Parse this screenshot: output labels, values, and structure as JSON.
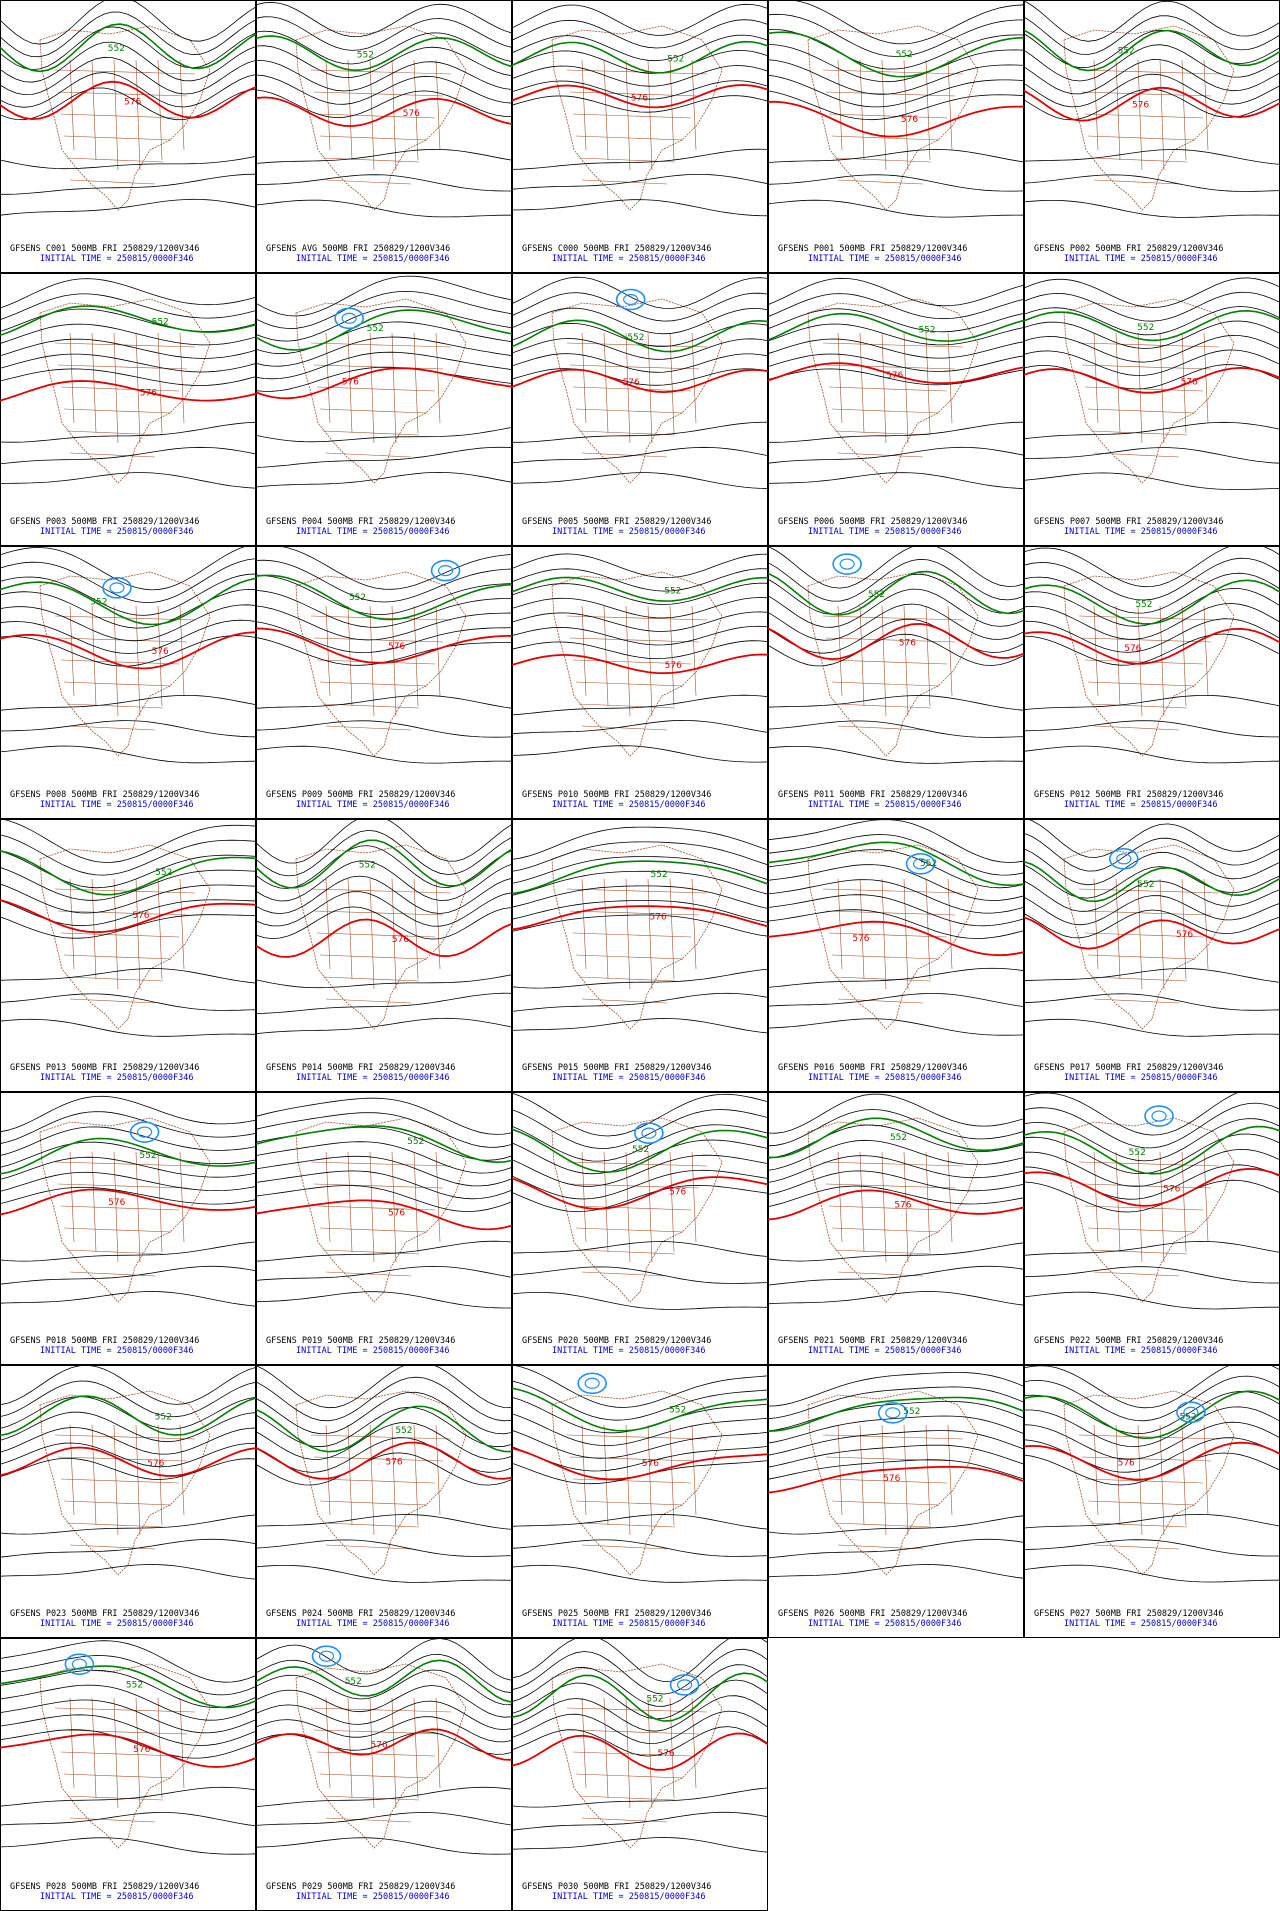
{
  "panels": [
    {
      "line1": "GFSENS C001 500MB FRI 250829/1200V346",
      "line2": "INITIAL TIME = 250815/0000F346",
      "contour_labels": [
        "576",
        "552"
      ]
    },
    {
      "line1": "GFSENS AVG 500MB FRI 250829/1200V346",
      "line2": "INITIAL TIME = 250815/0000F346",
      "contour_labels": [
        "576",
        "552"
      ]
    },
    {
      "line1": "GFSENS C000 500MB FRI 250829/1200V346",
      "line2": "INITIAL TIME = 250815/0000F346",
      "contour_labels": [
        "576",
        "552"
      ]
    },
    {
      "line1": "GFSENS P001 500MB FRI 250829/1200V346",
      "line2": "INITIAL TIME = 250815/0000F346",
      "contour_labels": [
        "576",
        "552"
      ]
    },
    {
      "line1": "GFSENS P002 500MB FRI 250829/1200V346",
      "line2": "INITIAL TIME = 250815/0000F346",
      "contour_labels": [
        "576",
        "552"
      ]
    },
    {
      "line1": "GFSENS P003 500MB FRI 250829/1200V346",
      "line2": "INITIAL TIME = 250815/0000F346",
      "contour_labels": [
        "576",
        "552"
      ]
    },
    {
      "line1": "GFSENS P004 500MB FRI 250829/1200V346",
      "line2": "INITIAL TIME = 250815/0000F346",
      "contour_labels": [
        "576",
        "552"
      ]
    },
    {
      "line1": "GFSENS P005 500MB FRI 250829/1200V346",
      "line2": "INITIAL TIME = 250815/0000F346",
      "contour_labels": [
        "576",
        "552"
      ]
    },
    {
      "line1": "GFSENS P006 500MB FRI 250829/1200V346",
      "line2": "INITIAL TIME = 250815/0000F346",
      "contour_labels": [
        "576",
        "552"
      ]
    },
    {
      "line1": "GFSENS P007 500MB FRI 250829/1200V346",
      "line2": "INITIAL TIME = 250815/0000F346",
      "contour_labels": [
        "576",
        "552"
      ]
    },
    {
      "line1": "GFSENS P008 500MB FRI 250829/1200V346",
      "line2": "INITIAL TIME = 250815/0000F346",
      "contour_labels": [
        "576",
        "552"
      ]
    },
    {
      "line1": "GFSENS P009 500MB FRI 250829/1200V346",
      "line2": "INITIAL TIME = 250815/0000F346",
      "contour_labels": [
        "576",
        "552"
      ]
    },
    {
      "line1": "GFSENS P010 500MB FRI 250829/1200V346",
      "line2": "INITIAL TIME = 250815/0000F346",
      "contour_labels": [
        "576",
        "552"
      ]
    },
    {
      "line1": "GFSENS P011 500MB FRI 250829/1200V346",
      "line2": "INITIAL TIME = 250815/0000F346",
      "contour_labels": [
        "576",
        "552"
      ]
    },
    {
      "line1": "GFSENS P012 500MB FRI 250829/1200V346",
      "line2": "INITIAL TIME = 250815/0000F346",
      "contour_labels": [
        "576",
        "552"
      ]
    },
    {
      "line1": "GFSENS P013 500MB FRI 250829/1200V346",
      "line2": "INITIAL TIME = 250815/0000F346",
      "contour_labels": [
        "576",
        "552"
      ]
    },
    {
      "line1": "GFSENS P014 500MB FRI 250829/1200V346",
      "line2": "INITIAL TIME = 250815/0000F346",
      "contour_labels": [
        "576",
        "552"
      ]
    },
    {
      "line1": "GFSENS P015 500MB FRI 250829/1200V346",
      "line2": "INITIAL TIME = 250815/0000F346",
      "contour_labels": [
        "576",
        "552"
      ]
    },
    {
      "line1": "GFSENS P016 500MB FRI 250829/1200V346",
      "line2": "INITIAL TIME = 250815/0000F346",
      "contour_labels": [
        "576",
        "552"
      ]
    },
    {
      "line1": "GFSENS P017 500MB FRI 250829/1200V346",
      "line2": "INITIAL TIME = 250815/0000F346",
      "contour_labels": [
        "576",
        "552"
      ]
    },
    {
      "line1": "GFSENS P018 500MB FRI 250829/1200V346",
      "line2": "INITIAL TIME = 250815/0000F346",
      "contour_labels": [
        "576",
        "552"
      ]
    },
    {
      "line1": "GFSENS P019 500MB FRI 250829/1200V346",
      "line2": "INITIAL TIME = 250815/0000F346",
      "contour_labels": [
        "576",
        "552"
      ]
    },
    {
      "line1": "GFSENS P020 500MB FRI 250829/1200V346",
      "line2": "INITIAL TIME = 250815/0000F346",
      "contour_labels": [
        "576",
        "552"
      ]
    },
    {
      "line1": "GFSENS P021 500MB FRI 250829/1200V346",
      "line2": "INITIAL TIME = 250815/0000F346",
      "contour_labels": [
        "576",
        "552"
      ]
    },
    {
      "line1": "GFSENS P022 500MB FRI 250829/1200V346",
      "line2": "INITIAL TIME = 250815/0000F346",
      "contour_labels": [
        "576",
        "552"
      ]
    },
    {
      "line1": "GFSENS P023 500MB FRI 250829/1200V346",
      "line2": "INITIAL TIME = 250815/0000F346",
      "contour_labels": [
        "576",
        "552"
      ]
    },
    {
      "line1": "GFSENS P024 500MB FRI 250829/1200V346",
      "line2": "INITIAL TIME = 250815/0000F346",
      "contour_labels": [
        "576",
        "552"
      ]
    },
    {
      "line1": "GFSENS P025 500MB FRI 250829/1200V346",
      "line2": "INITIAL TIME = 250815/0000F346",
      "contour_labels": [
        "576",
        "552"
      ]
    },
    {
      "line1": "GFSENS P026 500MB FRI 250829/1200V346",
      "line2": "INITIAL TIME = 250815/0000F346",
      "contour_labels": [
        "576",
        "552"
      ]
    },
    {
      "line1": "GFSENS P027 500MB FRI 250829/1200V346",
      "line2": "INITIAL TIME = 250815/0000F346",
      "contour_labels": [
        "576",
        "552"
      ]
    },
    {
      "line1": "GFSENS P028 500MB FRI 250829/1200V346",
      "line2": "INITIAL TIME = 250815/0000F346",
      "contour_labels": [
        "576",
        "552"
      ]
    },
    {
      "line1": "GFSENS P029 500MB FRI 250829/1200V346",
      "line2": "INITIAL TIME = 250815/0000F346",
      "contour_labels": [
        "576",
        "552"
      ]
    },
    {
      "line1": "GFSENS P030 500MB FRI 250829/1200V346",
      "line2": "INITIAL TIME = 250815/0000F346",
      "contour_labels": [
        "576",
        "552"
      ]
    }
  ]
}
